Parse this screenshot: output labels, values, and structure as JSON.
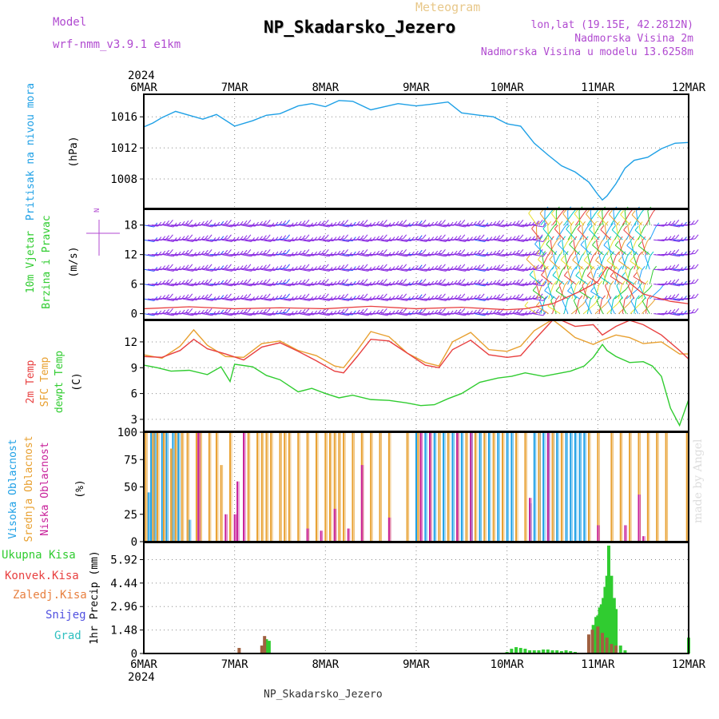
{
  "header": {
    "title": "NP_Skadarsko_Jezero",
    "meteogram_label": "Meteogram",
    "model_label": "Model",
    "model_name": "wrf-nmm_v3.9.1 e1km",
    "lonlat": "lon,lat (19.15E, 42.2812N)",
    "altitude": "Nadmorska Visina 2m",
    "model_altitude": "Nadmorska Visina u modelu 13.6258m",
    "footer": "NP_Skadarsko_Jezero",
    "made_by": "made by Angel"
  },
  "time_axis": {
    "year_top": "2024",
    "year_bottom": "2024",
    "ticks": [
      "6MAR",
      "7MAR",
      "8MAR",
      "9MAR",
      "10MAR",
      "11MAR",
      "12MAR"
    ]
  },
  "colors": {
    "pressure": "#1ea0e6",
    "t2m": "#e84040",
    "sfc_temp": "#e8a030",
    "dewpt": "#30cc30",
    "cloud_high": "#1ea0e6",
    "cloud_mid": "#e8a030",
    "cloud_low": "#c8209a",
    "precip_total": "#30cc30",
    "precip_conv": "#e84040",
    "precip_frozen": "#e88040",
    "snow": "#5050e0",
    "grad": "#30c0c0",
    "wind_barb": "#8a2be2",
    "wind_speed": "#e84040"
  },
  "chart_data": [
    {
      "type": "line",
      "panel": "pressure",
      "title": "",
      "ylabel_main": "Pritisak na nivou mora",
      "ylabel_unit": "(hPa)",
      "yticks": [
        "1016",
        "1012",
        "1008"
      ],
      "ylim": [
        1004.2,
        1018.9
      ],
      "xlim": [
        0,
        6
      ],
      "series": [
        {
          "x": [
            0,
            0.1,
            0.2,
            0.35,
            0.5,
            0.65,
            0.8,
            1.0,
            1.2,
            1.35,
            1.5,
            1.7,
            1.85,
            2.0,
            2.15,
            2.3,
            2.5,
            2.65,
            2.8,
            3.0,
            3.15,
            3.35,
            3.5,
            3.7,
            3.85,
            4.0,
            4.15,
            4.3,
            4.45,
            4.6,
            4.75,
            4.9,
            5.0,
            5.05,
            5.1,
            5.2,
            5.3,
            5.4,
            5.55,
            5.7,
            5.85,
            6.0
          ],
          "y": [
            1014.7,
            1015.2,
            1015.9,
            1016.7,
            1016.2,
            1015.7,
            1016.3,
            1014.8,
            1015.5,
            1016.2,
            1016.4,
            1017.4,
            1017.7,
            1017.3,
            1018.1,
            1018.0,
            1016.9,
            1017.3,
            1017.7,
            1017.4,
            1017.6,
            1017.9,
            1016.5,
            1016.2,
            1016.0,
            1015.1,
            1014.8,
            1012.6,
            1011.1,
            1009.7,
            1008.9,
            1007.6,
            1006.0,
            1005.3,
            1005.8,
            1007.4,
            1009.4,
            1010.4,
            1010.8,
            1011.9,
            1012.6,
            1012.7
          ]
        }
      ]
    },
    {
      "type": "line",
      "panel": "wind",
      "ylabel_main": "10m Vjetar",
      "ylabel_sub": "Brzina i Pravac",
      "ylabel_unit": "(m/s)",
      "compass": "N",
      "yticks": [
        "18",
        "12",
        "6",
        "0"
      ],
      "ylim": [
        -1.2,
        21.2
      ],
      "xlim": [
        0,
        6
      ],
      "series": [
        {
          "name": "wind speed",
          "x": [
            0,
            0.5,
            1.0,
            1.5,
            2.0,
            2.5,
            3.0,
            3.5,
            4.0,
            4.2,
            4.5,
            4.8,
            5.0,
            5.1,
            5.3,
            5.5,
            5.8,
            6.0
          ],
          "y": [
            1.0,
            1.4,
            1.0,
            1.2,
            1.0,
            1.5,
            1.0,
            1.3,
            0.8,
            1.0,
            2.0,
            4.5,
            6.5,
            9.5,
            7.0,
            4.0,
            2.5,
            2.0
          ]
        }
      ]
    },
    {
      "type": "line",
      "panel": "temperature",
      "ylabel_lines": [
        "2m Temp",
        "SFC Temp",
        "dewpt Temp"
      ],
      "ylabel_unit": "(C)",
      "yticks": [
        "12",
        "9",
        "6",
        "3"
      ],
      "ylim": [
        1.6,
        14.5
      ],
      "xlim": [
        0,
        6
      ],
      "series": [
        {
          "name": "2m Temp",
          "x": [
            0,
            0.2,
            0.4,
            0.55,
            0.7,
            0.9,
            1.1,
            1.3,
            1.5,
            1.7,
            1.9,
            2.1,
            2.2,
            2.35,
            2.5,
            2.7,
            2.9,
            3.1,
            3.25,
            3.4,
            3.6,
            3.8,
            4.0,
            4.15,
            4.3,
            4.5,
            4.6,
            4.75,
            4.95,
            5.05,
            5.2,
            5.35,
            5.5,
            5.7,
            5.9,
            6.0
          ],
          "y": [
            10.3,
            10.2,
            11.0,
            12.3,
            11.2,
            10.6,
            9.9,
            11.4,
            11.9,
            10.9,
            9.8,
            8.6,
            8.4,
            10.3,
            12.3,
            12.1,
            10.7,
            9.3,
            9.0,
            11.1,
            12.2,
            10.5,
            10.2,
            10.4,
            12.2,
            14.5,
            14.5,
            13.8,
            14.0,
            12.8,
            13.8,
            14.5,
            14.0,
            12.8,
            11.0,
            10.0
          ]
        },
        {
          "name": "SFC Temp",
          "x": [
            0,
            0.2,
            0.4,
            0.55,
            0.7,
            0.9,
            1.1,
            1.3,
            1.5,
            1.7,
            1.9,
            2.1,
            2.2,
            2.35,
            2.5,
            2.7,
            2.9,
            3.1,
            3.25,
            3.4,
            3.6,
            3.8,
            4.0,
            4.15,
            4.3,
            4.5,
            4.6,
            4.75,
            4.95,
            5.05,
            5.2,
            5.35,
            5.5,
            5.7,
            5.9,
            6.0
          ],
          "y": [
            10.5,
            10.1,
            11.5,
            13.4,
            11.6,
            10.3,
            10.2,
            11.8,
            12.1,
            11.0,
            10.4,
            9.2,
            9.0,
            11.0,
            13.2,
            12.6,
            10.7,
            9.6,
            9.2,
            12.0,
            13.1,
            11.1,
            10.9,
            11.5,
            13.3,
            14.6,
            13.8,
            12.5,
            11.7,
            12.2,
            12.8,
            12.5,
            11.8,
            12.0,
            10.6,
            10.6
          ]
        },
        {
          "name": "dewpt Temp",
          "x": [
            0,
            0.15,
            0.3,
            0.5,
            0.7,
            0.85,
            0.95,
            1.0,
            1.2,
            1.35,
            1.5,
            1.7,
            1.85,
            2.0,
            2.15,
            2.3,
            2.5,
            2.7,
            2.9,
            3.05,
            3.2,
            3.35,
            3.5,
            3.7,
            3.9,
            4.05,
            4.2,
            4.4,
            4.55,
            4.7,
            4.85,
            4.95,
            5.05,
            5.1,
            5.2,
            5.35,
            5.5,
            5.6,
            5.7,
            5.8,
            5.9,
            6.0
          ],
          "y": [
            9.3,
            9.0,
            8.6,
            8.7,
            8.2,
            9.1,
            7.4,
            9.4,
            9.1,
            8.1,
            7.6,
            6.2,
            6.6,
            6.0,
            5.5,
            5.8,
            5.3,
            5.2,
            4.9,
            4.6,
            4.7,
            5.4,
            6.0,
            7.3,
            7.8,
            8.0,
            8.4,
            8.0,
            8.3,
            8.6,
            9.2,
            10.2,
            11.7,
            11.0,
            10.3,
            9.6,
            9.7,
            9.2,
            8.0,
            4.3,
            2.3,
            5.3
          ]
        }
      ]
    },
    {
      "type": "bar",
      "panel": "clouds",
      "ylabel_lines": [
        "Visoka Oblacnost",
        "Srednja Oblacnost",
        "Niska Oblacnost"
      ],
      "ylabel_unit": "(%)",
      "yticks": [
        "100",
        "75",
        "50",
        "25",
        "0"
      ],
      "ylim": [
        0,
        100
      ],
      "xlim": [
        0,
        6
      ],
      "series": [
        {
          "name": "Visoka Oblacnost",
          "x": [
            0.05,
            0.08,
            0.12,
            0.2,
            0.25,
            0.32,
            0.38,
            0.5,
            3.0,
            3.1,
            3.2,
            3.3,
            3.4,
            3.5,
            3.6,
            3.7,
            3.8,
            3.9,
            4.0,
            4.05,
            4.25,
            4.3,
            4.35,
            4.4,
            4.45,
            4.5,
            4.55,
            4.65,
            4.7,
            4.75,
            4.8,
            4.85
          ],
          "values": [
            45,
            100,
            100,
            100,
            100,
            100,
            100,
            20,
            100,
            100,
            100,
            100,
            100,
            100,
            100,
            100,
            100,
            100,
            100,
            100,
            35,
            100,
            100,
            100,
            100,
            100,
            100,
            100,
            100,
            100,
            100,
            100
          ]
        },
        {
          "name": "Srednja Oblacnost",
          "x": [
            0.02,
            0.1,
            0.15,
            0.22,
            0.3,
            0.35,
            0.42,
            0.48,
            0.58,
            0.62,
            0.72,
            0.8,
            0.85,
            0.95,
            1.15,
            1.25,
            1.3,
            1.35,
            1.4,
            1.5,
            1.55,
            1.6,
            1.7,
            1.8,
            1.9,
            2.0,
            2.05,
            2.1,
            2.15,
            2.2,
            2.3,
            2.4,
            2.5,
            2.6,
            2.7,
            2.9,
            3.02,
            3.15,
            3.25,
            3.35,
            3.45,
            3.55,
            3.65,
            3.75,
            3.85,
            3.95,
            4.1,
            4.2,
            4.35,
            4.5,
            4.6,
            4.9,
            5.0,
            5.15,
            5.25,
            5.35,
            5.45,
            5.55,
            5.65,
            5.75,
            5.98
          ],
          "values": [
            100,
            100,
            100,
            100,
            85,
            100,
            100,
            100,
            100,
            100,
            100,
            100,
            70,
            100,
            100,
            100,
            100,
            100,
            100,
            100,
            100,
            100,
            100,
            100,
            100,
            100,
            100,
            100,
            100,
            100,
            100,
            100,
            100,
            100,
            100,
            100,
            100,
            100,
            100,
            100,
            100,
            100,
            100,
            100,
            100,
            100,
            100,
            100,
            100,
            100,
            100,
            100,
            100,
            100,
            100,
            100,
            100,
            100,
            100,
            100,
            100
          ]
        },
        {
          "name": "Niska Oblacnost",
          "x": [
            0.6,
            0.9,
            1.0,
            1.03,
            1.1,
            1.8,
            1.95,
            2.1,
            2.25,
            2.4,
            2.7,
            3.05,
            3.15,
            3.45,
            3.6,
            4.25,
            4.45,
            5.0,
            5.3,
            5.45,
            5.5
          ],
          "values": [
            100,
            25,
            25,
            55,
            100,
            12,
            10,
            30,
            12,
            70,
            22,
            100,
            100,
            100,
            100,
            40,
            100,
            15,
            15,
            43,
            5
          ]
        }
      ]
    },
    {
      "type": "bar",
      "panel": "precipitation",
      "ylabel_lines": [
        "Ukupna Kisa",
        "Konvek.Kisa",
        "Zaledj.Kisa",
        "Snijeg",
        "Grad"
      ],
      "ylabel_unit": "1hr Precip (mm)",
      "yticks": [
        "5.92",
        "4.44",
        "2.96",
        "1.48",
        "0"
      ],
      "ylim": [
        0,
        7.0
      ],
      "xlim": [
        0,
        6
      ],
      "series": [
        {
          "name": "Ukupna Kisa",
          "x": [
            1.35,
            1.38,
            4.0,
            4.05,
            4.1,
            4.15,
            4.2,
            4.25,
            4.3,
            4.35,
            4.4,
            4.45,
            4.5,
            4.55,
            4.6,
            4.65,
            4.7,
            4.75,
            4.95,
            4.98,
            5.0,
            5.02,
            5.04,
            5.06,
            5.08,
            5.1,
            5.12,
            5.15,
            5.18,
            5.2,
            5.25,
            5.3,
            6.0
          ],
          "values": [
            0.9,
            0.8,
            0.1,
            0.3,
            0.4,
            0.35,
            0.3,
            0.2,
            0.2,
            0.2,
            0.25,
            0.25,
            0.2,
            0.2,
            0.15,
            0.2,
            0.15,
            0.1,
            1.8,
            2.3,
            2.4,
            2.9,
            3.1,
            3.5,
            4.2,
            4.9,
            6.8,
            4.9,
            3.5,
            2.8,
            0.5,
            0.2,
            1.0
          ]
        },
        {
          "name": "Konvek.Kisa",
          "x": [
            1.05,
            1.3,
            1.33,
            4.9,
            4.94,
            5.0,
            5.05,
            5.1,
            5.15,
            5.2
          ],
          "values": [
            0.35,
            0.5,
            1.1,
            1.2,
            1.5,
            1.7,
            1.3,
            1.0,
            0.6,
            0.5
          ]
        }
      ]
    }
  ]
}
